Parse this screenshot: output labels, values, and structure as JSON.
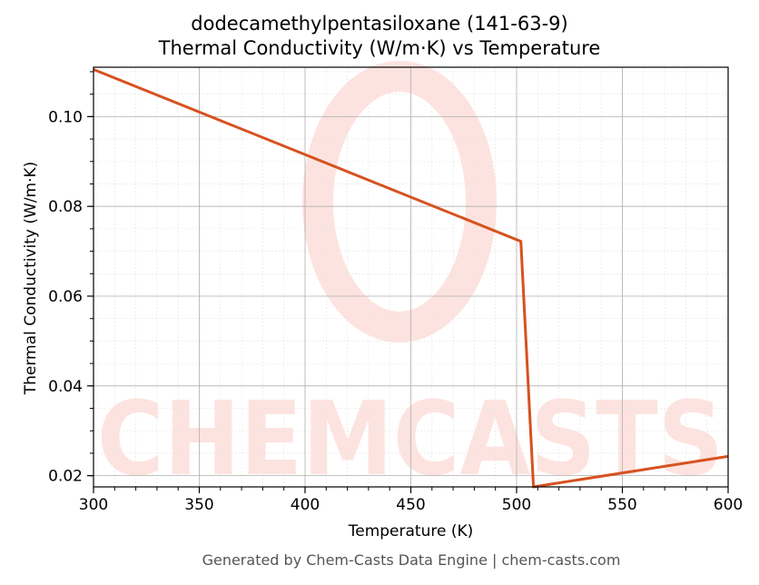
{
  "chart_data": {
    "type": "line",
    "title": "dodecamethylpentasiloxane (141-63-9)",
    "subtitle": "Thermal Conductivity (W/m·K) vs Temperature",
    "xlabel": "Temperature (K)",
    "ylabel": "Thermal Conductivity (W/m·K)",
    "xlim": [
      300,
      600
    ],
    "ylim": [
      0.0175,
      0.111
    ],
    "xticks": [
      300,
      350,
      400,
      450,
      500,
      550,
      600
    ],
    "xtick_labels": [
      "300",
      "350",
      "400",
      "450",
      "500",
      "550",
      "600"
    ],
    "yticks": [
      0.02,
      0.04,
      0.06,
      0.08,
      0.1
    ],
    "ytick_labels": [
      "0.02",
      "0.04",
      "0.06",
      "0.08",
      "0.10"
    ],
    "grid": true,
    "series": [
      {
        "x": [
          300,
          502,
          508,
          600
        ],
        "y": [
          0.1105,
          0.0722,
          0.0175,
          0.0243
        ],
        "color": "#d65220"
      }
    ]
  },
  "watermark": {
    "text": "CHEMCASTS",
    "color": "#fde3df"
  },
  "footer": "Generated by Chem-Casts Data Engine | chem-casts.com"
}
